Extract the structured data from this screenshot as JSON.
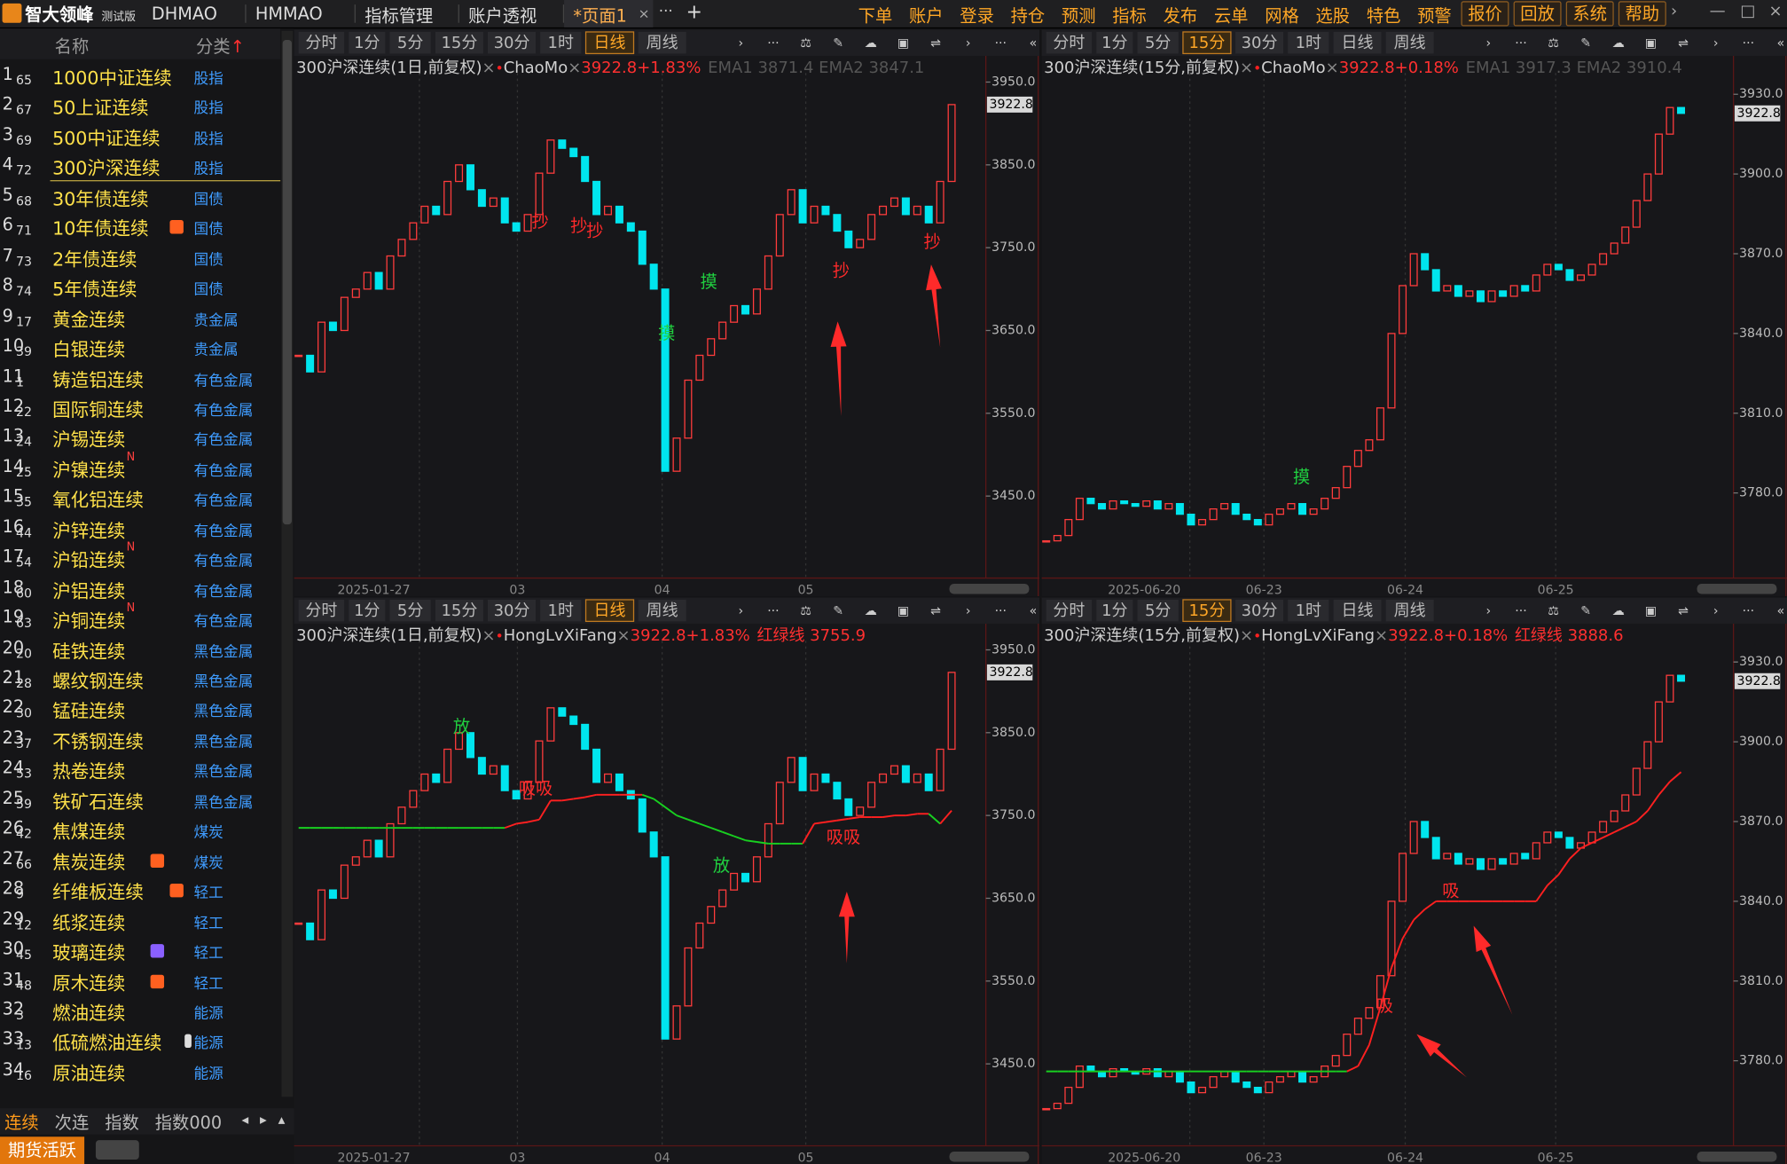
{
  "app": {
    "logo": "智大领峰",
    "edition": "测试版",
    "tabs": [
      "DHMAO",
      "HMMAO",
      "指标管理",
      "账户透视",
      "*页面1"
    ],
    "tab_close": "×",
    "tab_more": "···",
    "tab_add": "+",
    "menu": [
      "下单",
      "账户",
      "登录",
      "持仓",
      "预测",
      "指标",
      "发布",
      "云单",
      "网格",
      "选股",
      "特色",
      "预警"
    ],
    "menu_boxed": [
      "报价",
      "回放",
      "系统",
      "帮助"
    ],
    "window_controls": [
      "›",
      "—",
      "□",
      "×"
    ]
  },
  "sidebar": {
    "col_name": "名称",
    "col_category": "分类",
    "sort_arrow": "↑",
    "rows": [
      {
        "index": 1,
        "sub": 65,
        "name": "1000中证连续",
        "category": "股指"
      },
      {
        "index": 2,
        "sub": 67,
        "name": "50上证连续",
        "category": "股指"
      },
      {
        "index": 3,
        "sub": 69,
        "name": "500中证连续",
        "category": "股指"
      },
      {
        "index": 4,
        "sub": 72,
        "name": "300沪深连续",
        "category": "股指",
        "selected": true
      },
      {
        "index": 5,
        "sub": 68,
        "name": "30年债连续",
        "category": "国债"
      },
      {
        "index": 6,
        "sub": 71,
        "name": "10年债连续",
        "category": "国债",
        "icon": "gift"
      },
      {
        "index": 7,
        "sub": 73,
        "name": "2年债连续",
        "category": "国债"
      },
      {
        "index": 8,
        "sub": 74,
        "name": "5年债连续",
        "category": "国债"
      },
      {
        "index": 9,
        "sub": 17,
        "name": "黄金连续",
        "category": "贵金属"
      },
      {
        "index": 10,
        "sub": 39,
        "name": "白银连续",
        "category": "贵金属"
      },
      {
        "index": 11,
        "sub": 1,
        "name": "铸造铝连续",
        "category": "有色金属"
      },
      {
        "index": 12,
        "sub": 22,
        "name": "国际铜连续",
        "category": "有色金属"
      },
      {
        "index": 13,
        "sub": 24,
        "name": "沪锡连续",
        "category": "有色金属"
      },
      {
        "index": 14,
        "sub": 25,
        "name": "沪镍连续",
        "badge": "N",
        "category": "有色金属"
      },
      {
        "index": 15,
        "sub": 35,
        "name": "氧化铝连续",
        "category": "有色金属"
      },
      {
        "index": 16,
        "sub": 44,
        "name": "沪锌连续",
        "category": "有色金属"
      },
      {
        "index": 17,
        "sub": 54,
        "name": "沪铅连续",
        "badge": "N",
        "category": "有色金属"
      },
      {
        "index": 18,
        "sub": 60,
        "name": "沪铝连续",
        "category": "有色金属"
      },
      {
        "index": 19,
        "sub": 63,
        "name": "沪铜连续",
        "badge": "N",
        "category": "有色金属"
      },
      {
        "index": 20,
        "sub": 20,
        "name": "硅铁连续",
        "category": "黑色金属"
      },
      {
        "index": 21,
        "sub": 28,
        "name": "螺纹钢连续",
        "category": "黑色金属"
      },
      {
        "index": 22,
        "sub": 30,
        "name": "锰硅连续",
        "category": "黑色金属"
      },
      {
        "index": 23,
        "sub": 37,
        "name": "不锈钢连续",
        "category": "黑色金属"
      },
      {
        "index": 24,
        "sub": 53,
        "name": "热卷连续",
        "category": "黑色金属"
      },
      {
        "index": 25,
        "sub": 59,
        "name": "铁矿石连续",
        "category": "黑色金属"
      },
      {
        "index": 26,
        "sub": 42,
        "name": "焦煤连续",
        "category": "煤炭"
      },
      {
        "index": 27,
        "sub": 66,
        "name": "焦炭连续",
        "category": "煤炭",
        "icon": "gift"
      },
      {
        "index": 28,
        "sub": 9,
        "name": "纤维板连续",
        "category": "轻工",
        "icon": "gift"
      },
      {
        "index": 29,
        "sub": 12,
        "name": "纸浆连续",
        "category": "轻工"
      },
      {
        "index": 30,
        "sub": 45,
        "name": "玻璃连续",
        "category": "轻工",
        "icon": "up"
      },
      {
        "index": 31,
        "sub": 48,
        "name": "原木连续",
        "category": "轻工",
        "icon": "gift"
      },
      {
        "index": 32,
        "sub": 3,
        "name": "燃油连续",
        "category": "能源"
      },
      {
        "index": 33,
        "sub": 13,
        "name": "低硫燃油连续",
        "category": "能源",
        "icon": "doc"
      },
      {
        "index": 34,
        "sub": 16,
        "name": "原油连续",
        "category": "能源"
      }
    ],
    "bottom_tabs": [
      "连续",
      "次连",
      "指数",
      "指数000"
    ],
    "bottom_active": 0,
    "bottom_arrows": [
      "◂",
      "▸",
      "▴"
    ],
    "hot": "期货活跃"
  },
  "glyphs": {
    "close": "×",
    "dot": "•",
    "tools": [
      "›",
      "···",
      "⚖",
      "✎",
      "☁",
      "▣",
      "⇌",
      "›",
      "···",
      "«"
    ]
  },
  "panels": [
    {
      "toolbar": [
        "分时",
        "1分",
        "5分",
        "15分",
        "30分",
        "1时",
        "日线",
        "周线"
      ],
      "active": 6,
      "title": "300沪深连续(1日,前复权)",
      "indicator": "ChaoMo",
      "change": "3922.8+1.83%",
      "extra": "EMA1 3871.4 EMA2 3847.1",
      "ylim": [
        3351,
        3961
      ],
      "yticks": [
        {
          "value": 3950,
          "label": "3950.0"
        },
        {
          "value": 3850,
          "label": "3850.0"
        },
        {
          "value": 3750,
          "label": "3750.0"
        },
        {
          "value": 3650,
          "label": "3650.0"
        },
        {
          "value": 3550,
          "label": "3550.0"
        },
        {
          "value": 3450,
          "label": "3450.0"
        }
      ],
      "price_tag": 3922.8,
      "xlabels": [
        "2025-01-27",
        "03",
        "04",
        "05"
      ],
      "closes": [
        3620,
        3600,
        3660,
        3650,
        3690,
        3700,
        3720,
        3700,
        3740,
        3760,
        3780,
        3800,
        3790,
        3830,
        3850,
        3820,
        3800,
        3810,
        3780,
        3770,
        3790,
        3840,
        3880,
        3870,
        3860,
        3830,
        3790,
        3800,
        3780,
        3770,
        3730,
        3700,
        3480,
        3520,
        3590,
        3620,
        3640,
        3660,
        3680,
        3670,
        3700,
        3740,
        3790,
        3820,
        3780,
        3800,
        3790,
        3770,
        3750,
        3760,
        3790,
        3800,
        3810,
        3790,
        3800,
        3780,
        3830,
        3922.8
      ],
      "annotations": [
        {
          "text": "抄",
          "color": "#ff2a2a"
        },
        {
          "text": "抄",
          "color": "#ff2a2a"
        },
        {
          "text": "抄",
          "color": "#ff2a2a"
        },
        {
          "text": "摸",
          "color": "#20d040"
        },
        {
          "text": "摸",
          "color": "#20d040"
        },
        {
          "text": "抄",
          "color": "#ff2a2a"
        },
        {
          "text": "抄",
          "color": "#ff2a2a"
        }
      ]
    },
    {
      "toolbar": [
        "分时",
        "1分",
        "5分",
        "15分",
        "30分",
        "1时",
        "日线",
        "周线"
      ],
      "active": 3,
      "title": "300沪深连续(15分,前复权)",
      "indicator": "ChaoMo",
      "change": "3922.8+0.18%",
      "extra": "EMA1 3917.3 EMA2 3910.4",
      "ylim": [
        3748,
        3938
      ],
      "yticks": [
        {
          "value": 3930,
          "label": "3930.0"
        },
        {
          "value": 3900,
          "label": "3900.0"
        },
        {
          "value": 3870,
          "label": "3870.0"
        },
        {
          "value": 3840,
          "label": "3840.0"
        },
        {
          "value": 3810,
          "label": "3810.0"
        },
        {
          "value": 3780,
          "label": "3780.0"
        }
      ],
      "price_tag": 3922.8,
      "xlabels": [
        "2025-06-20",
        "06-23",
        "06-24",
        "06-25"
      ],
      "closes": [
        3762,
        3764,
        3770,
        3778,
        3776,
        3774,
        3777,
        3776,
        3775,
        3777,
        3774,
        3776,
        3772,
        3768,
        3770,
        3774,
        3776,
        3772,
        3770,
        3768,
        3772,
        3774,
        3776,
        3772,
        3774,
        3778,
        3782,
        3790,
        3796,
        3800,
        3812,
        3840,
        3858,
        3870,
        3864,
        3856,
        3858,
        3854,
        3856,
        3852,
        3856,
        3854,
        3858,
        3856,
        3862,
        3866,
        3864,
        3860,
        3862,
        3866,
        3870,
        3874,
        3880,
        3890,
        3900,
        3915,
        3925,
        3922.8
      ],
      "annotations": [
        {
          "text": "摸",
          "color": "#20d040"
        }
      ]
    },
    {
      "toolbar": [
        "分时",
        "1分",
        "5分",
        "15分",
        "30分",
        "1时",
        "日线",
        "周线"
      ],
      "active": 6,
      "title": "300沪深连续(1日,前复权)",
      "indicator": "HongLvXiFang",
      "change": "3922.8+1.83%",
      "extra": "红绿线 3755.9",
      "ylim": [
        3351,
        3961
      ],
      "yticks": [
        {
          "value": 3950,
          "label": "3950.0"
        },
        {
          "value": 3850,
          "label": "3850.0"
        },
        {
          "value": 3750,
          "label": "3750.0"
        },
        {
          "value": 3650,
          "label": "3650.0"
        },
        {
          "value": 3550,
          "label": "3550.0"
        },
        {
          "value": 3450,
          "label": "3450.0"
        }
      ],
      "price_tag": 3922.8,
      "xlabels": [
        "2025-01-27",
        "03",
        "04",
        "05"
      ],
      "closes": [
        3620,
        3600,
        3660,
        3650,
        3690,
        3700,
        3720,
        3700,
        3740,
        3760,
        3780,
        3800,
        3790,
        3830,
        3850,
        3820,
        3800,
        3810,
        3780,
        3770,
        3790,
        3840,
        3880,
        3870,
        3860,
        3830,
        3790,
        3800,
        3780,
        3770,
        3730,
        3700,
        3480,
        3520,
        3590,
        3620,
        3640,
        3660,
        3680,
        3670,
        3700,
        3740,
        3790,
        3820,
        3780,
        3800,
        3790,
        3770,
        3750,
        3760,
        3790,
        3800,
        3810,
        3790,
        3800,
        3780,
        3830,
        3922.8
      ],
      "line": [
        3735,
        3735,
        3735,
        3735,
        3735,
        3735,
        3735,
        3735,
        3735,
        3735,
        3735,
        3735,
        3735,
        3735,
        3735,
        3735,
        3735,
        3735,
        3735,
        3740,
        3742,
        3745,
        3768,
        3768,
        3770,
        3772,
        3775,
        3775,
        3775,
        3775,
        3775,
        3770,
        3760,
        3750,
        3745,
        3740,
        3735,
        3730,
        3725,
        3720,
        3718,
        3716,
        3716,
        3716,
        3716,
        3740,
        3742,
        3744,
        3746,
        3748,
        3748,
        3748,
        3750,
        3750,
        3752,
        3752,
        3740,
        3755.9
      ],
      "annotations": [
        {
          "text": "放",
          "color": "#20d040"
        },
        {
          "text": "吸吸",
          "color": "#ff2a2a"
        },
        {
          "text": "放",
          "color": "#20d040"
        },
        {
          "text": "吸吸",
          "color": "#ff2a2a"
        }
      ]
    },
    {
      "toolbar": [
        "分时",
        "1分",
        "5分",
        "15分",
        "30分",
        "1时",
        "日线",
        "周线"
      ],
      "active": 3,
      "title": "300沪深连续(15分,前复权)",
      "indicator": "HongLvXiFang",
      "change": "3922.8+0.18%",
      "extra": "红绿线 3888.6",
      "ylim": [
        3748,
        3938
      ],
      "yticks": [
        {
          "value": 3930,
          "label": "3930.0"
        },
        {
          "value": 3900,
          "label": "3900.0"
        },
        {
          "value": 3870,
          "label": "3870.0"
        },
        {
          "value": 3840,
          "label": "3840.0"
        },
        {
          "value": 3810,
          "label": "3810.0"
        },
        {
          "value": 3780,
          "label": "3780.0"
        }
      ],
      "price_tag": 3922.8,
      "xlabels": [
        "2025-06-20",
        "06-23",
        "06-24",
        "06-25"
      ],
      "closes": [
        3762,
        3764,
        3770,
        3778,
        3776,
        3774,
        3777,
        3776,
        3775,
        3777,
        3774,
        3776,
        3772,
        3768,
        3770,
        3774,
        3776,
        3772,
        3770,
        3768,
        3772,
        3774,
        3776,
        3772,
        3774,
        3778,
        3782,
        3790,
        3796,
        3800,
        3812,
        3840,
        3858,
        3870,
        3864,
        3856,
        3858,
        3854,
        3856,
        3852,
        3856,
        3854,
        3858,
        3856,
        3862,
        3866,
        3864,
        3860,
        3862,
        3866,
        3870,
        3874,
        3880,
        3890,
        3900,
        3915,
        3925,
        3922.8
      ],
      "line": [
        3776,
        3776,
        3776,
        3776,
        3776,
        3776,
        3776,
        3776,
        3776,
        3776,
        3776,
        3776,
        3776,
        3776,
        3776,
        3776,
        3776,
        3776,
        3776,
        3776,
        3776,
        3776,
        3776,
        3776,
        3776,
        3776,
        3776,
        3776,
        3778,
        3786,
        3800,
        3815,
        3826,
        3833,
        3837,
        3840,
        3840,
        3840,
        3840,
        3840,
        3840,
        3840,
        3840,
        3840,
        3840,
        3846,
        3850,
        3856,
        3860,
        3862,
        3864,
        3866,
        3868,
        3870,
        3874,
        3880,
        3885,
        3888.6
      ],
      "annotations": [
        {
          "text": "吸",
          "color": "#ff2a2a"
        },
        {
          "text": "吸",
          "color": "#ff2a2a"
        }
      ]
    }
  ]
}
